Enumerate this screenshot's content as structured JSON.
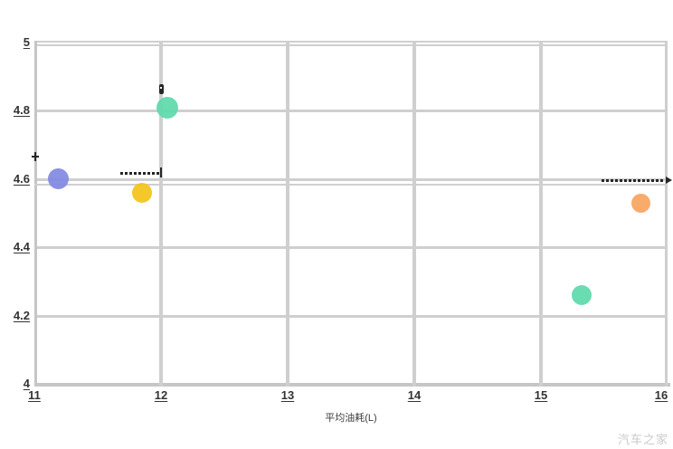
{
  "watermark": {
    "label": "汽车之家"
  },
  "chart_data": {
    "type": "scatter",
    "title": "",
    "xlabel": "平均油耗(L)",
    "ylabel": "",
    "xlim": [
      11,
      16
    ],
    "ylim": [
      4,
      5
    ],
    "x_ticks": [
      "11",
      "12",
      "13",
      "14",
      "15",
      "16"
    ],
    "y_ticks": [
      "5",
      "4.8",
      "4.6",
      "4.4",
      "4.2",
      "4"
    ],
    "grid": true,
    "legend": false,
    "reference_line": {
      "y": 4.583
    },
    "points": [
      {
        "name": "bubble-mint-upper",
        "x": 12.05,
        "y": 4.81,
        "r": 12,
        "color": "#5fd9ac"
      },
      {
        "name": "bubble-blue",
        "x": 11.19,
        "y": 4.6,
        "r": 11.5,
        "color": "#8289e2"
      },
      {
        "name": "bubble-yellow",
        "x": 11.85,
        "y": 4.56,
        "r": 11,
        "color": "#f3c31a"
      },
      {
        "name": "bubble-orange",
        "x": 15.79,
        "y": 4.53,
        "r": 10.5,
        "color": "#f7a55f"
      },
      {
        "name": "bubble-mint-lower",
        "x": 15.32,
        "y": 4.26,
        "r": 11,
        "color": "#5fd9ac"
      }
    ],
    "annotations": [
      {
        "type": "dashed-line",
        "name": "annotation-dashes-left",
        "x1": 11.68,
        "x2": 11.99,
        "y": 4.617,
        "end": "tick"
      },
      {
        "type": "dashed-line",
        "name": "annotation-dashes-right",
        "x1": 15.48,
        "x2": 15.98,
        "y": 4.596,
        "end": "arrow"
      },
      {
        "type": "plus-marker",
        "name": "annotation-plus-marker",
        "x": 11.01,
        "y": 4.667
      },
      {
        "type": "mini-marker",
        "name": "annotation-mini-marker",
        "x": 12.0,
        "y": 4.863
      }
    ],
    "colors": {
      "grid": "#cfcfcf",
      "axis": "#c6c6c6",
      "tick_label": "#333333",
      "annotation": "#262626",
      "watermark": "#c9c9c9",
      "axis_title": "#3c3c3c",
      "background": "#ffffff"
    }
  }
}
